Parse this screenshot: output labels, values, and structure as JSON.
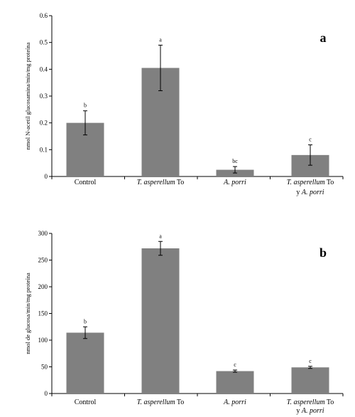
{
  "chart_data": [
    {
      "type": "bar",
      "panel_label": "a",
      "categories": [
        {
          "parts": [
            {
              "text": "Control",
              "italic": false
            }
          ]
        },
        {
          "parts": [
            {
              "text": "T. asperellum",
              "italic": true
            },
            {
              "text": " To",
              "italic": false
            }
          ]
        },
        {
          "parts": [
            {
              "text": "A. porri",
              "italic": true
            }
          ]
        },
        {
          "parts": [
            {
              "text": "T. asperellum",
              "italic": true
            },
            {
              "text": " To",
              "italic": false
            }
          ],
          "line2": [
            {
              "text": "y ",
              "italic": false
            },
            {
              "text": "A. porri",
              "italic": true
            }
          ]
        }
      ],
      "values": [
        0.2,
        0.405,
        0.025,
        0.08
      ],
      "errors": [
        0.045,
        0.085,
        0.012,
        0.038
      ],
      "significance": [
        "b",
        "a",
        "bc",
        "c"
      ],
      "ylabel": "nmol N-acetil glucosamina/min/mg proteína",
      "ylim": [
        0,
        0.6
      ],
      "yticks": [
        "0",
        "0.1",
        "0.2",
        "0.3",
        "0.4",
        "0.5",
        "0.6"
      ],
      "bar_color": "#808080",
      "grid": false
    },
    {
      "type": "bar",
      "panel_label": "b",
      "categories": [
        {
          "parts": [
            {
              "text": "Control",
              "italic": false
            }
          ]
        },
        {
          "parts": [
            {
              "text": "T. asperellum",
              "italic": true
            },
            {
              "text": " To",
              "italic": false
            }
          ]
        },
        {
          "parts": [
            {
              "text": "A. porri",
              "italic": true
            }
          ]
        },
        {
          "parts": [
            {
              "text": "T. asperellum",
              "italic": true
            },
            {
              "text": " To",
              "italic": false
            }
          ],
          "line2": [
            {
              "text": "y ",
              "italic": false
            },
            {
              "text": "A. porri",
              "italic": true
            }
          ]
        }
      ],
      "values": [
        114,
        272,
        42,
        49
      ],
      "errors": [
        11,
        13,
        2,
        2
      ],
      "significance": [
        "b",
        "a",
        "c",
        "c"
      ],
      "ylabel": "nmol de glucosa/min/mg proteína",
      "ylim": [
        0,
        300
      ],
      "yticks": [
        "0",
        "50",
        "100",
        "150",
        "200",
        "250",
        "300"
      ],
      "bar_color": "#808080",
      "grid": false
    }
  ]
}
